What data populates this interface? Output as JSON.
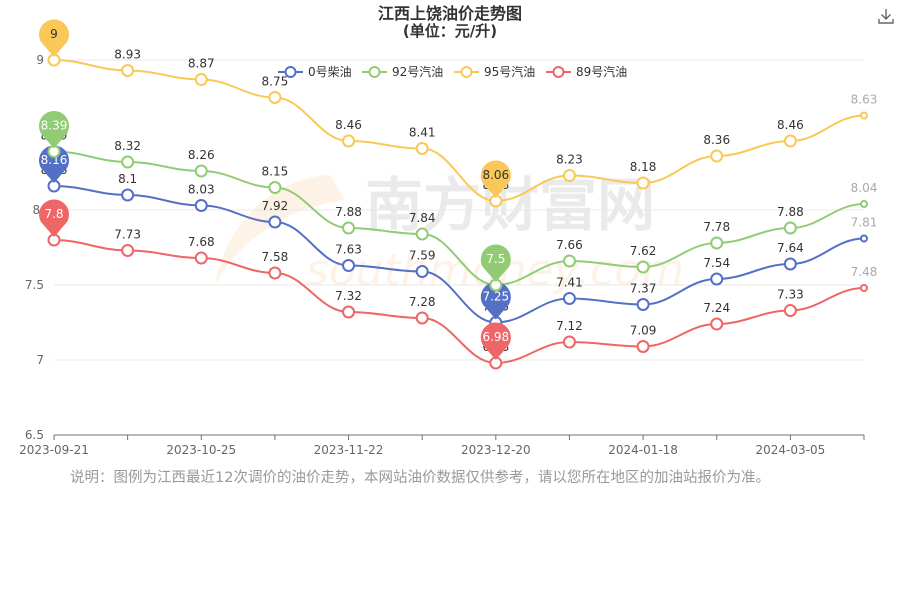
{
  "chart_data": {
    "type": "line",
    "title": "江西上饶油价走势图",
    "subtitle": "(单位：元/升)",
    "x": [
      "2023-09-21",
      "2023-10-08",
      "2023-10-25",
      "2023-11-07",
      "2023-11-22",
      "2023-12-06",
      "2023-12-20",
      "2024-01-03",
      "2024-01-18",
      "2024-02-01",
      "2024-03-05",
      "2024-03-19"
    ],
    "x_ticks": [
      "2023-09-21",
      "2023-10-25",
      "2023-11-22",
      "2023-12-20",
      "2024-01-18",
      "2024-03-05"
    ],
    "ylim": [
      6.5,
      9.0
    ],
    "y_ticks": [
      "6.5",
      "7",
      "7.5",
      "8.",
      "9"
    ],
    "grid": true,
    "legend_position": "top",
    "series": [
      {
        "name": "0号柴油",
        "color": "#5470c6",
        "values": [
          8.16,
          8.1,
          8.03,
          7.92,
          7.63,
          7.59,
          7.25,
          7.41,
          7.37,
          7.54,
          7.64,
          7.81
        ]
      },
      {
        "name": "92号汽油",
        "color": "#91cc75",
        "values": [
          8.39,
          8.32,
          8.26,
          8.15,
          7.88,
          7.84,
          7.5,
          7.66,
          7.62,
          7.78,
          7.88,
          8.04
        ]
      },
      {
        "name": "95号汽油",
        "color": "#fac858",
        "values": [
          9,
          8.93,
          8.87,
          8.75,
          8.46,
          8.41,
          8.06,
          8.23,
          8.18,
          8.36,
          8.46,
          8.63
        ]
      },
      {
        "name": "89号汽油",
        "color": "#ee6666",
        "values": [
          7.8,
          7.73,
          7.68,
          7.58,
          7.32,
          7.28,
          6.98,
          7.12,
          7.09,
          7.24,
          7.33,
          7.48
        ]
      }
    ],
    "watermark": "南方财富网 southmoney.com"
  },
  "note": "说明：图例为江西最近12次调价的油价走势，本网站油价数据仅供参考，请以您所在地区的加油站报价为准。"
}
